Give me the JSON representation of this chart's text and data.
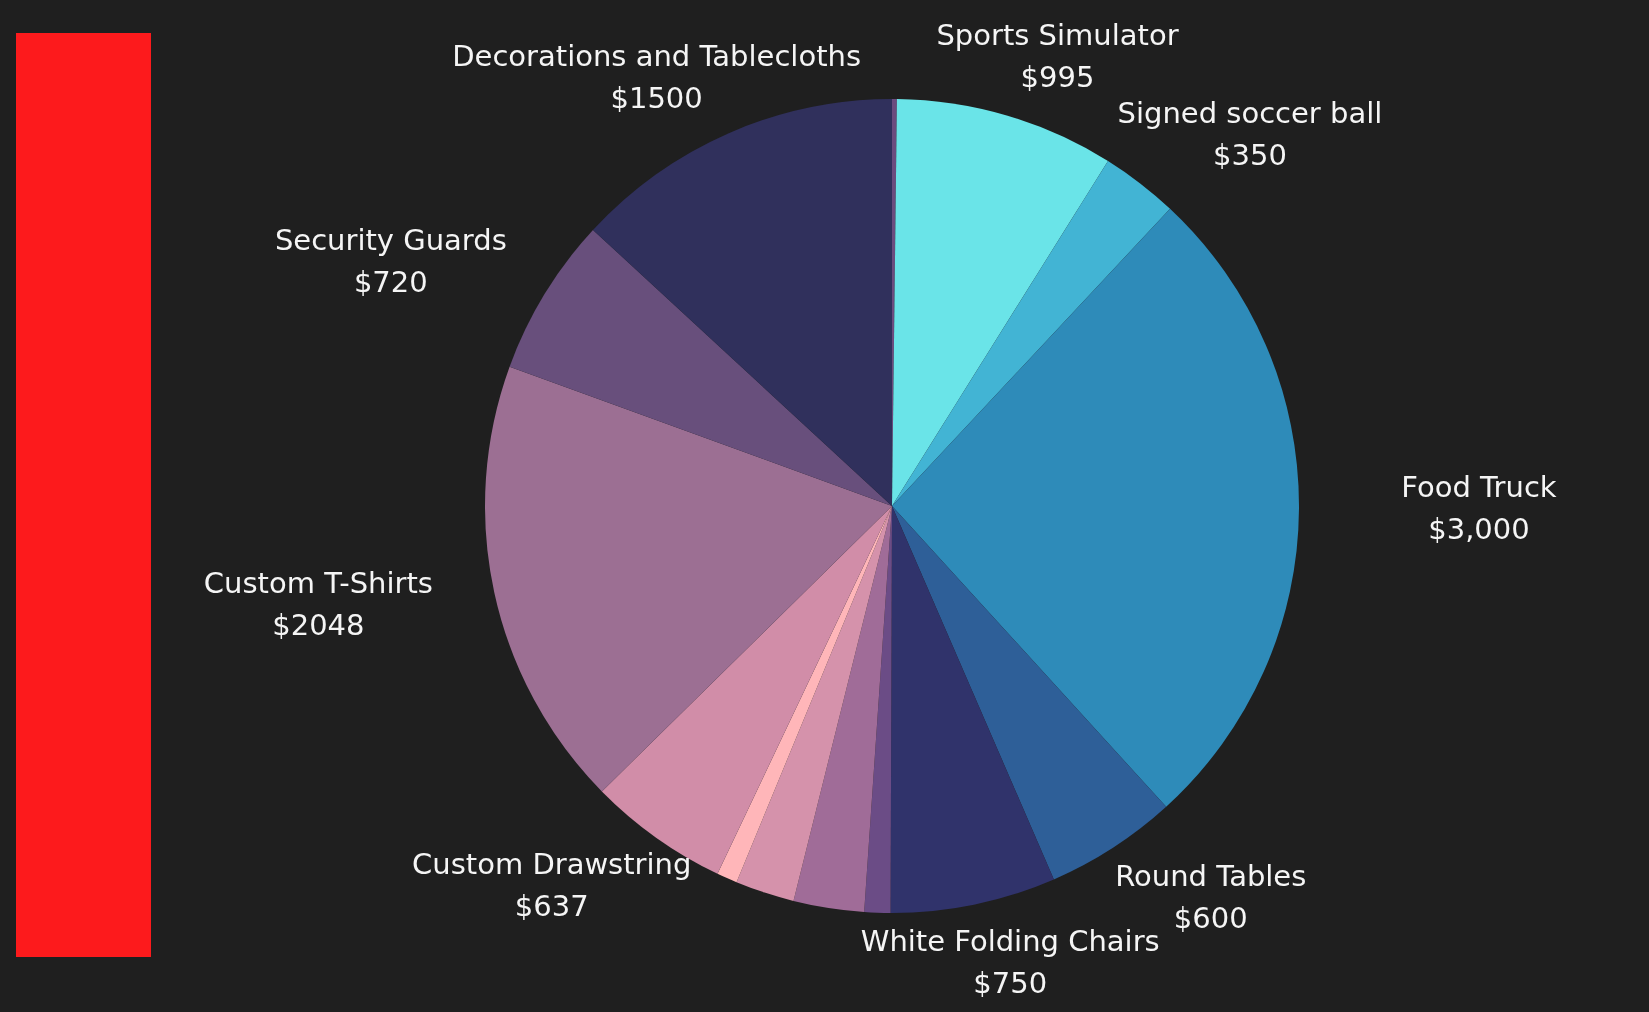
{
  "chart_data": {
    "type": "pie",
    "categories": [
      null,
      "Sports Simulator",
      "Signed soccer ball",
      "Food Truck",
      "Round Tables",
      "White Folding Chairs",
      null,
      null,
      null,
      null,
      "Custom Drawstring",
      "Custom T-Shirts",
      "Security Guards",
      "Decorations and Tablecloths"
    ],
    "values": [
      22,
      995,
      350,
      3000,
      600,
      750,
      118,
      320,
      268,
      93,
      637,
      2048,
      720,
      1500
    ],
    "value_labels": [
      null,
      "$995",
      "$350",
      "$3,000",
      "$600",
      "$750",
      null,
      null,
      null,
      null,
      "$637",
      "$2048",
      "$720",
      "$1500"
    ],
    "colors": [
      "#6b4c7e",
      "#6ae4e8",
      "#42b4d4",
      "#2e8bb9",
      "#2e5f98",
      "#30336b",
      "#6b4c86",
      "#a06c98",
      "#d592ab",
      "#ffb6b9",
      "#d18da8",
      "#9c6f93",
      "#684f7c",
      "#30305c"
    ],
    "legend": false
  }
}
